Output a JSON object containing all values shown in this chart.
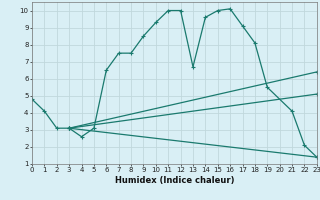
{
  "xlabel": "Humidex (Indice chaleur)",
  "bg_color": "#d9eff5",
  "grid_color": "#c0d8dc",
  "line_color": "#1a7a6e",
  "line1_x": [
    0,
    1,
    2,
    3,
    4,
    5,
    6,
    7,
    8,
    9,
    10,
    11,
    12,
    13,
    14,
    15,
    16,
    17,
    18,
    19,
    21,
    22,
    23
  ],
  "line1_y": [
    4.8,
    4.1,
    3.1,
    3.1,
    2.6,
    3.1,
    6.5,
    7.5,
    7.5,
    8.5,
    9.3,
    10.0,
    10.0,
    6.7,
    9.6,
    10.0,
    10.1,
    9.1,
    8.1,
    5.5,
    4.1,
    2.1,
    1.4
  ],
  "line2_x": [
    3,
    23
  ],
  "line2_y": [
    3.1,
    6.4
  ],
  "line3_x": [
    3,
    23
  ],
  "line3_y": [
    3.1,
    5.1
  ],
  "line4_x": [
    3,
    23
  ],
  "line4_y": [
    3.1,
    1.4
  ],
  "xlim": [
    0,
    23
  ],
  "ylim": [
    1,
    10.5
  ],
  "xticks": [
    0,
    1,
    2,
    3,
    4,
    5,
    6,
    7,
    8,
    9,
    10,
    11,
    12,
    13,
    14,
    15,
    16,
    17,
    18,
    19,
    20,
    21,
    22,
    23
  ],
  "yticks": [
    1,
    2,
    3,
    4,
    5,
    6,
    7,
    8,
    9,
    10
  ],
  "tick_fontsize": 5.0,
  "xlabel_fontsize": 6.0
}
